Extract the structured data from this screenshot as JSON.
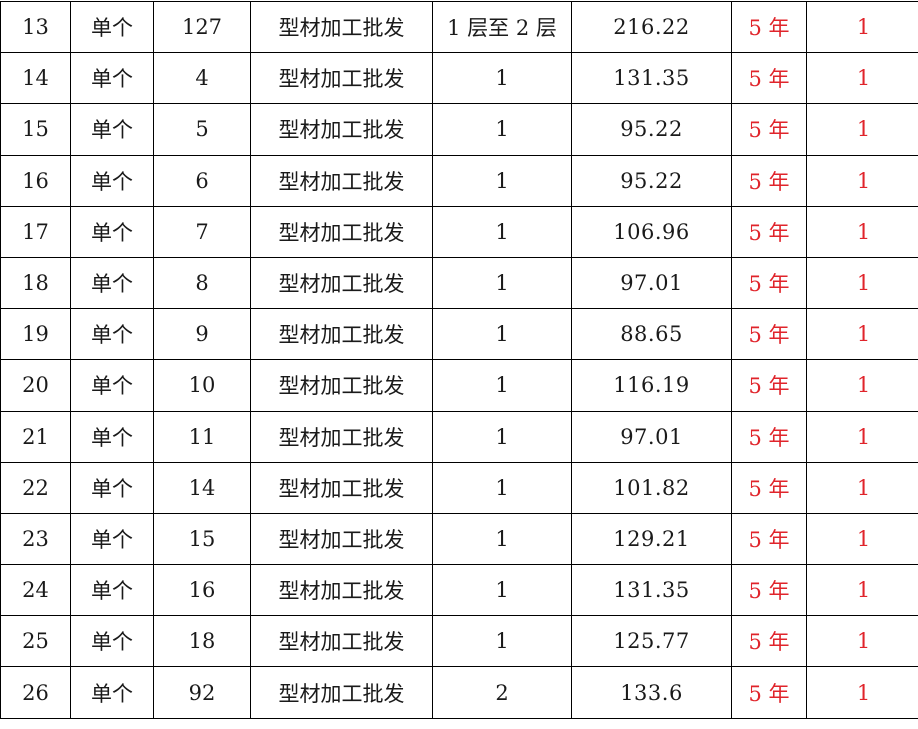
{
  "colors": {
    "text": "#1a1a1a",
    "highlight": "#e0242b",
    "border": "#000000"
  },
  "rows": [
    [
      "13",
      "单个",
      "127",
      "型材加工批发",
      "1 层至 2 层",
      "216.22",
      "5 年",
      "1"
    ],
    [
      "14",
      "单个",
      "4",
      "型材加工批发",
      "1",
      "131.35",
      "5 年",
      "1"
    ],
    [
      "15",
      "单个",
      "5",
      "型材加工批发",
      "1",
      "95.22",
      "5 年",
      "1"
    ],
    [
      "16",
      "单个",
      "6",
      "型材加工批发",
      "1",
      "95.22",
      "5 年",
      "1"
    ],
    [
      "17",
      "单个",
      "7",
      "型材加工批发",
      "1",
      "106.96",
      "5 年",
      "1"
    ],
    [
      "18",
      "单个",
      "8",
      "型材加工批发",
      "1",
      "97.01",
      "5 年",
      "1"
    ],
    [
      "19",
      "单个",
      "9",
      "型材加工批发",
      "1",
      "88.65",
      "5 年",
      "1"
    ],
    [
      "20",
      "单个",
      "10",
      "型材加工批发",
      "1",
      "116.19",
      "5 年",
      "1"
    ],
    [
      "21",
      "单个",
      "11",
      "型材加工批发",
      "1",
      "97.01",
      "5 年",
      "1"
    ],
    [
      "22",
      "单个",
      "14",
      "型材加工批发",
      "1",
      "101.82",
      "5 年",
      "1"
    ],
    [
      "23",
      "单个",
      "15",
      "型材加工批发",
      "1",
      "129.21",
      "5 年",
      "1"
    ],
    [
      "24",
      "单个",
      "16",
      "型材加工批发",
      "1",
      "131.35",
      "5 年",
      "1"
    ],
    [
      "25",
      "单个",
      "18",
      "型材加工批发",
      "1",
      "125.77",
      "5 年",
      "1"
    ],
    [
      "26",
      "单个",
      "92",
      "型材加工批发",
      "2",
      "133.6",
      "5 年",
      "1"
    ]
  ]
}
